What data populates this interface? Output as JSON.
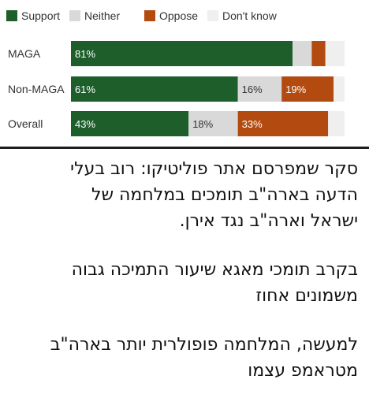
{
  "chart_data": {
    "type": "bar",
    "orientation": "horizontal",
    "stacked": true,
    "categories": [
      "MAGA",
      "Non-MAGA",
      "Overall"
    ],
    "series": [
      {
        "name": "Support",
        "color": "#1d5e2b",
        "values": [
          81,
          61,
          43
        ]
      },
      {
        "name": "Neither",
        "color": "#d9d9d9",
        "values": [
          7,
          16,
          18
        ]
      },
      {
        "name": "Oppose",
        "color": "#b34a0f",
        "values": [
          5,
          19,
          33
        ]
      },
      {
        "name": "Don't know",
        "color": "#efefef",
        "values": [
          7,
          4,
          6
        ]
      }
    ],
    "data_labels": [
      [
        "81%",
        "",
        "",
        ""
      ],
      [
        "61%",
        "16%",
        "19%",
        ""
      ],
      [
        "43%",
        "18%",
        "33%",
        ""
      ]
    ],
    "xlim": [
      0,
      100
    ],
    "legend_position": "top-left",
    "grid": false
  },
  "article": {
    "paragraphs": [
      [
        "סקר שמפרסם אתר פוליטיקו: רוב בעלי",
        "הדעה בארה\"ב תומכים במלחמה של",
        "ישראל וארה\"ב נגד אירן."
      ],
      [
        "בקרב תומכי מאגא שיעור התמיכה גבוה",
        "משמונים אחוז"
      ],
      [
        "למעשה, המלחמה פופולרית יותר בארה\"ב",
        "מטראמפ עצמו"
      ]
    ]
  }
}
